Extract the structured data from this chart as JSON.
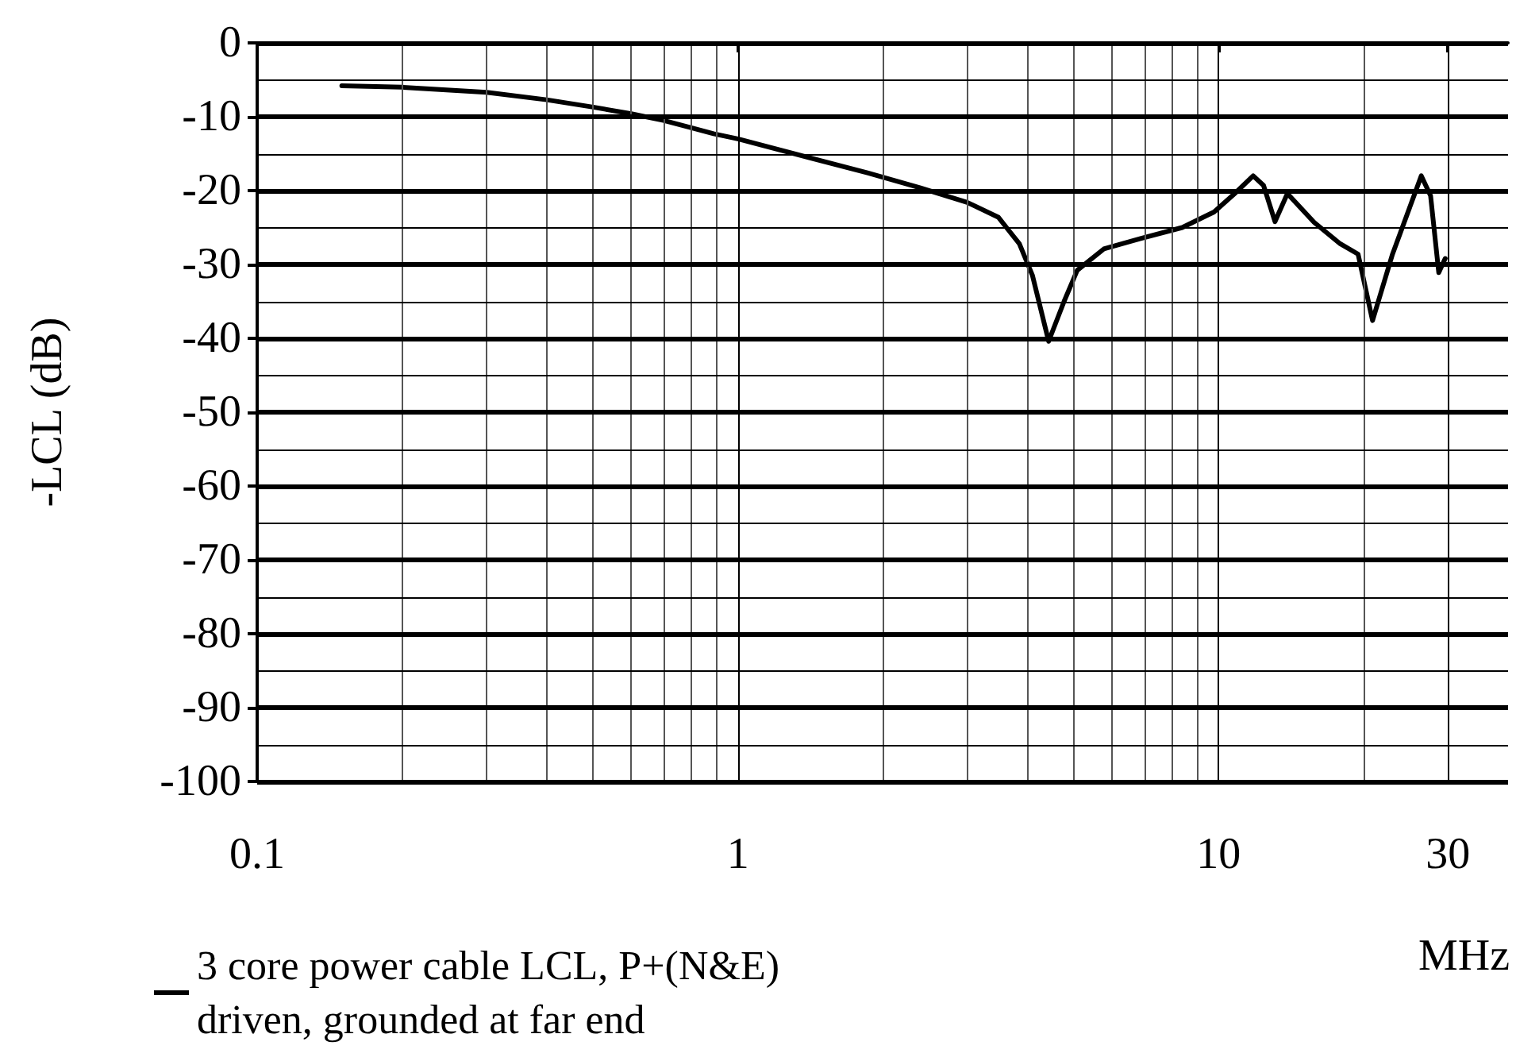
{
  "chart_data": {
    "type": "line",
    "xlabel": "MHz",
    "ylabel": "-LCL (dB)",
    "log": "x",
    "grid": true,
    "legend": "bottom left",
    "marker": "none",
    "line_style": "solid",
    "xlim": [
      0.1,
      40
    ],
    "xticks": [
      0.1,
      {
        "value": 0.2,
        "label": null
      },
      {
        "value": 0.3,
        "label": null
      },
      {
        "value": 0.4,
        "label": null
      },
      {
        "value": 0.5,
        "label": null
      },
      {
        "value": 0.6,
        "label": null
      },
      {
        "value": 0.7,
        "label": null
      },
      {
        "value": 0.8,
        "label": null
      },
      {
        "value": 0.9,
        "label": null
      },
      1,
      {
        "value": 2,
        "label": null
      },
      {
        "value": 3,
        "label": null
      },
      {
        "value": 4,
        "label": null
      },
      {
        "value": 5,
        "label": null
      },
      {
        "value": 6,
        "label": null
      },
      {
        "value": 7,
        "label": null
      },
      {
        "value": 8,
        "label": null
      },
      {
        "value": 9,
        "label": null
      },
      10,
      {
        "value": 20,
        "label": null
      },
      30
    ],
    "ylim": [
      -100,
      0
    ],
    "yticks": [
      -100,
      {
        "value": -95,
        "label": null
      },
      -90,
      {
        "value": -85,
        "label": null
      },
      -80,
      {
        "value": -75,
        "label": null
      },
      -70,
      {
        "value": -65,
        "label": null
      },
      -60,
      {
        "value": -55,
        "label": null
      },
      -50,
      {
        "value": -45,
        "label": null
      },
      -40,
      {
        "value": -35,
        "label": null
      },
      -30,
      {
        "value": -25,
        "label": null
      },
      -20,
      {
        "value": -15,
        "label": null
      },
      -10,
      {
        "value": -5,
        "label": null
      },
      0
    ],
    "series": [
      {
        "name": "3 core power cable LCL, P+(N&E) driven, grounded at far end",
        "color": "#000000",
        "x": [
          0.15,
          0.2,
          0.3,
          0.4,
          0.5,
          0.6,
          0.7,
          0.8,
          0.89,
          1.0,
          1.86,
          2.39,
          3.0,
          3.48,
          3.85,
          4.1,
          4.43,
          4.77,
          5.08,
          5.77,
          6.88,
          8.4,
          9.78,
          10.8,
          11.8,
          12.4,
          13.1,
          13.9,
          15.8,
          17.9,
          19.5,
          20.9,
          23,
          26.4,
          27.6,
          28.7,
          29.6
        ],
        "values": [
          -5.8,
          -6,
          -6.7,
          -7.7,
          -8.7,
          -9.6,
          -10.5,
          -11.5,
          -12.3,
          -13,
          -17.6,
          -19.6,
          -21.6,
          -23.6,
          -27.2,
          -31.5,
          -40.4,
          -35,
          -30.8,
          -27.9,
          -26.5,
          -25,
          -22.9,
          -20.4,
          -18,
          -19.3,
          -24.2,
          -20.4,
          -24.3,
          -27.2,
          -28.6,
          -37.6,
          -28.6,
          -18,
          -20.7,
          -31.1,
          -29.2
        ]
      }
    ]
  }
}
